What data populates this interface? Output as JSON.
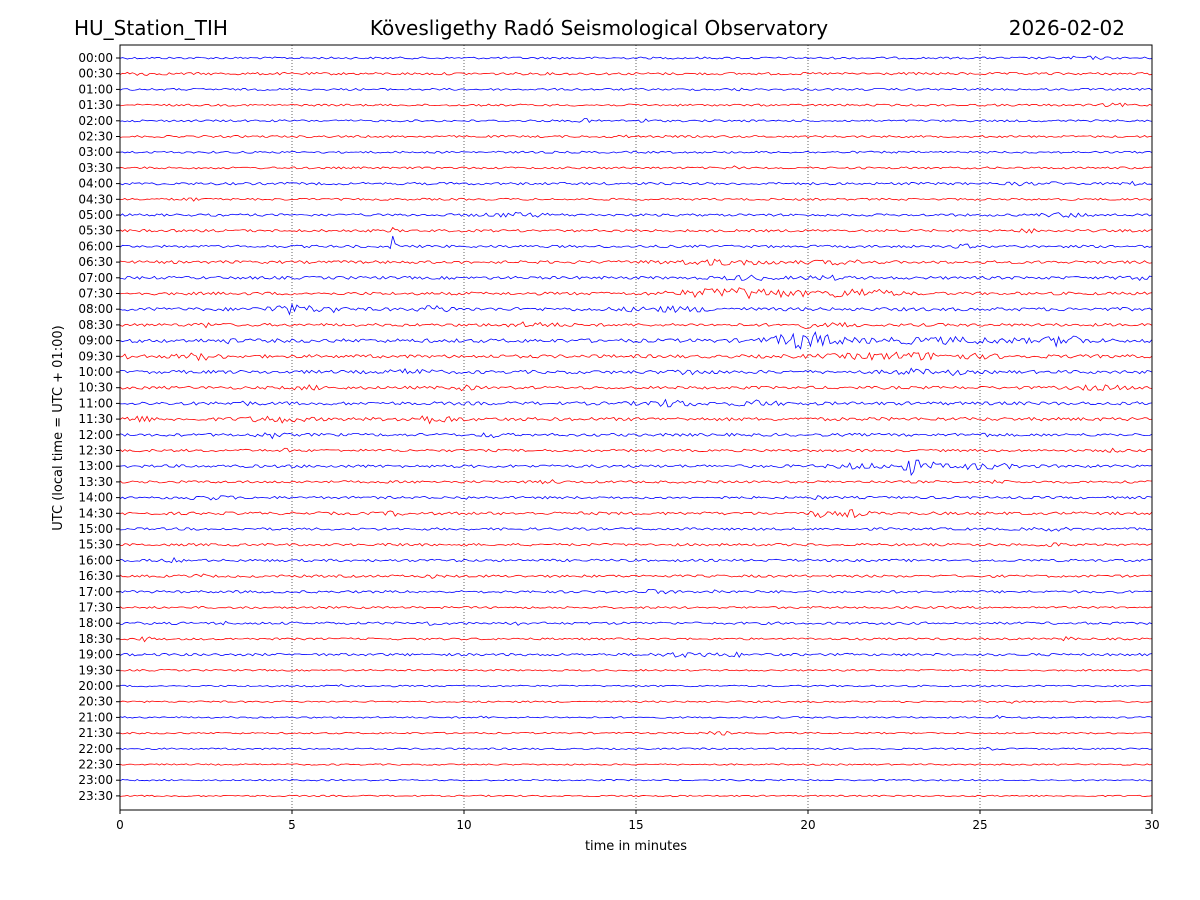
{
  "header": {
    "station": "HU_Station_TIH",
    "observatory": "Kövesligethy Radó Seismological Observatory",
    "date": "2026-02-02"
  },
  "chart_data": {
    "type": "line",
    "subtype": "helicorder",
    "xlabel": "time in minutes",
    "ylabel": "UTC (local time = UTC + 01:00)",
    "xlim": [
      0,
      30
    ],
    "x_ticks": [
      "0",
      "5",
      "10",
      "15",
      "20",
      "25",
      "30"
    ],
    "x_gridlines": [
      5,
      10,
      15,
      20,
      25
    ],
    "row_colors": [
      "#0000ff",
      "#ff0000"
    ],
    "rows": [
      {
        "label": "00:00",
        "noise": 0.25,
        "events": [
          {
            "t": 28.0,
            "amp": 0.25,
            "dur": 1.2
          }
        ]
      },
      {
        "label": "00:30",
        "noise": 0.3,
        "events": [
          {
            "t": 0.5,
            "amp": 0.35,
            "dur": 0.6
          }
        ]
      },
      {
        "label": "01:00",
        "noise": 0.25,
        "events": [
          {
            "t": 17.9,
            "amp": 0.3,
            "dur": 0.3
          }
        ]
      },
      {
        "label": "01:30",
        "noise": 0.25,
        "events": [
          {
            "t": 29.0,
            "amp": 0.25,
            "dur": 1.0
          }
        ]
      },
      {
        "label": "02:00",
        "noise": 0.25,
        "events": [
          {
            "t": 13.5,
            "amp": 0.35,
            "dur": 0.5
          },
          {
            "t": 15.2,
            "amp": 0.3,
            "dur": 0.5
          }
        ]
      },
      {
        "label": "02:30",
        "noise": 0.25,
        "events": [
          {
            "t": 14.5,
            "amp": 0.3,
            "dur": 0.5
          }
        ]
      },
      {
        "label": "03:00",
        "noise": 0.25,
        "events": []
      },
      {
        "label": "03:30",
        "noise": 0.25,
        "events": [
          {
            "t": 17.8,
            "amp": 0.3,
            "dur": 0.4
          }
        ]
      },
      {
        "label": "04:00",
        "noise": 0.3,
        "events": [
          {
            "t": 26.2,
            "amp": 0.35,
            "dur": 0.6
          },
          {
            "t": 27.2,
            "amp": 0.3,
            "dur": 0.3
          },
          {
            "t": 29.5,
            "amp": 0.3,
            "dur": 0.6
          }
        ]
      },
      {
        "label": "04:30",
        "noise": 0.25,
        "events": [
          {
            "t": 2.0,
            "amp": 0.3,
            "dur": 0.6
          }
        ]
      },
      {
        "label": "05:00",
        "noise": 0.3,
        "events": [
          {
            "t": 11.5,
            "amp": 0.35,
            "dur": 2.0
          },
          {
            "t": 27.5,
            "amp": 0.35,
            "dur": 1.5
          }
        ]
      },
      {
        "label": "05:30",
        "noise": 0.3,
        "events": [
          {
            "t": 7.9,
            "amp": 0.5,
            "dur": 0.2
          },
          {
            "t": 26.5,
            "amp": 0.3,
            "dur": 0.8
          }
        ]
      },
      {
        "label": "06:00",
        "noise": 0.3,
        "events": [
          {
            "t": 7.95,
            "amp": 2.6,
            "dur": 0.15
          },
          {
            "t": 24.5,
            "amp": 0.35,
            "dur": 0.5
          }
        ]
      },
      {
        "label": "06:30",
        "noise": 0.35,
        "events": [
          {
            "t": 17.5,
            "amp": 0.45,
            "dur": 3.5
          },
          {
            "t": 21.0,
            "amp": 0.35,
            "dur": 1.5
          }
        ]
      },
      {
        "label": "07:00",
        "noise": 0.35,
        "events": [
          {
            "t": 18.2,
            "amp": 0.4,
            "dur": 1.5
          },
          {
            "t": 20.5,
            "amp": 0.35,
            "dur": 1.2
          },
          {
            "t": 29.5,
            "amp": 0.45,
            "dur": 0.8
          }
        ]
      },
      {
        "label": "07:30",
        "noise": 0.35,
        "events": [
          {
            "t": 18.0,
            "amp": 1.1,
            "dur": 3.5
          },
          {
            "t": 21.5,
            "amp": 0.9,
            "dur": 2.0
          }
        ]
      },
      {
        "label": "08:00",
        "noise": 0.4,
        "events": [
          {
            "t": 5.0,
            "amp": 0.9,
            "dur": 1.5
          },
          {
            "t": 6.2,
            "amp": 0.75,
            "dur": 0.3
          },
          {
            "t": 9.2,
            "amp": 0.7,
            "dur": 0.8
          },
          {
            "t": 16.0,
            "amp": 0.4,
            "dur": 3.0
          }
        ]
      },
      {
        "label": "08:30",
        "noise": 0.35,
        "events": [
          {
            "t": 2.5,
            "amp": 0.45,
            "dur": 0.5
          },
          {
            "t": 12.0,
            "amp": 0.45,
            "dur": 1.5
          },
          {
            "t": 19.9,
            "amp": 0.55,
            "dur": 0.6
          },
          {
            "t": 21.0,
            "amp": 0.4,
            "dur": 0.8
          }
        ]
      },
      {
        "label": "09:00",
        "noise": 0.45,
        "events": [
          {
            "t": 19.9,
            "amp": 1.7,
            "dur": 1.8
          },
          {
            "t": 24.0,
            "amp": 0.5,
            "dur": 5.0
          },
          {
            "t": 27.5,
            "amp": 1.2,
            "dur": 1.0
          },
          {
            "t": 3.2,
            "amp": 0.35,
            "dur": 0.3
          }
        ]
      },
      {
        "label": "09:30",
        "noise": 0.4,
        "events": [
          {
            "t": 2.3,
            "amp": 0.6,
            "dur": 1.2
          },
          {
            "t": 23.0,
            "amp": 0.65,
            "dur": 4.5
          },
          {
            "t": 0.3,
            "amp": 0.5,
            "dur": 0.5
          }
        ]
      },
      {
        "label": "10:00",
        "noise": 0.4,
        "events": [
          {
            "t": 8.5,
            "amp": 0.45,
            "dur": 1.2
          },
          {
            "t": 16.5,
            "amp": 0.45,
            "dur": 1.0
          },
          {
            "t": 24.3,
            "amp": 0.7,
            "dur": 0.3
          },
          {
            "t": 23.0,
            "amp": 0.5,
            "dur": 1.2
          }
        ]
      },
      {
        "label": "10:30",
        "noise": 0.35,
        "events": [
          {
            "t": 10.0,
            "amp": 0.4,
            "dur": 0.6
          },
          {
            "t": 28.5,
            "amp": 0.4,
            "dur": 1.5
          },
          {
            "t": 5.5,
            "amp": 0.35,
            "dur": 1.0
          }
        ]
      },
      {
        "label": "11:00",
        "noise": 0.4,
        "events": [
          {
            "t": 16.0,
            "amp": 0.6,
            "dur": 1.5
          },
          {
            "t": 18.5,
            "amp": 0.5,
            "dur": 1.2
          },
          {
            "t": 3.5,
            "amp": 0.45,
            "dur": 0.5
          }
        ]
      },
      {
        "label": "11:30",
        "noise": 0.4,
        "events": [
          {
            "t": 0.5,
            "amp": 0.55,
            "dur": 0.8
          },
          {
            "t": 4.5,
            "amp": 0.6,
            "dur": 1.5
          },
          {
            "t": 9.0,
            "amp": 0.7,
            "dur": 1.5
          }
        ]
      },
      {
        "label": "12:00",
        "noise": 0.35,
        "events": [
          {
            "t": 4.3,
            "amp": 0.75,
            "dur": 0.6
          },
          {
            "t": 10.8,
            "amp": 0.7,
            "dur": 0.4
          },
          {
            "t": 25.1,
            "amp": 0.35,
            "dur": 0.3
          }
        ]
      },
      {
        "label": "12:30",
        "noise": 0.3,
        "events": [
          {
            "t": 4.8,
            "amp": 0.45,
            "dur": 0.2
          },
          {
            "t": 29.0,
            "amp": 0.3,
            "dur": 0.6
          }
        ]
      },
      {
        "label": "13:00",
        "noise": 0.35,
        "events": [
          {
            "t": 23.0,
            "amp": 1.9,
            "dur": 0.5
          },
          {
            "t": 23.5,
            "amp": 0.8,
            "dur": 0.5
          },
          {
            "t": 25.0,
            "amp": 0.55,
            "dur": 2.0
          },
          {
            "t": 21.5,
            "amp": 0.5,
            "dur": 1.5
          }
        ]
      },
      {
        "label": "13:30",
        "noise": 0.3,
        "events": [
          {
            "t": 12.5,
            "amp": 0.35,
            "dur": 0.5
          },
          {
            "t": 25.5,
            "amp": 0.35,
            "dur": 0.5
          }
        ]
      },
      {
        "label": "14:00",
        "noise": 0.3,
        "events": [
          {
            "t": 2.5,
            "amp": 0.35,
            "dur": 1.5
          },
          {
            "t": 10.0,
            "amp": 0.4,
            "dur": 0.2
          },
          {
            "t": 20.3,
            "amp": 0.35,
            "dur": 0.3
          }
        ]
      },
      {
        "label": "14:30",
        "noise": 0.35,
        "events": [
          {
            "t": 20.3,
            "amp": 0.7,
            "dur": 0.5
          },
          {
            "t": 21.3,
            "amp": 0.7,
            "dur": 0.8
          },
          {
            "t": 8.0,
            "amp": 0.4,
            "dur": 0.5
          }
        ]
      },
      {
        "label": "15:00",
        "noise": 0.3,
        "events": [
          {
            "t": 27.0,
            "amp": 0.3,
            "dur": 1.0
          }
        ]
      },
      {
        "label": "15:30",
        "noise": 0.3,
        "events": [
          {
            "t": 8.2,
            "amp": 0.35,
            "dur": 0.3
          },
          {
            "t": 27.0,
            "amp": 0.3,
            "dur": 0.8
          }
        ]
      },
      {
        "label": "16:00",
        "noise": 0.3,
        "events": [
          {
            "t": 7.7,
            "amp": 0.7,
            "dur": 0.15
          },
          {
            "t": 1.5,
            "amp": 0.35,
            "dur": 0.6
          }
        ]
      },
      {
        "label": "16:30",
        "noise": 0.3,
        "events": [
          {
            "t": 2.3,
            "amp": 0.35,
            "dur": 0.4
          },
          {
            "t": 9.0,
            "amp": 0.35,
            "dur": 0.4
          }
        ]
      },
      {
        "label": "17:00",
        "noise": 0.3,
        "events": [
          {
            "t": 15.5,
            "amp": 0.35,
            "dur": 1.0
          },
          {
            "t": 17.3,
            "amp": 0.35,
            "dur": 0.5
          }
        ]
      },
      {
        "label": "17:30",
        "noise": 0.25,
        "events": [
          {
            "t": 3.5,
            "amp": 0.35,
            "dur": 0.2
          }
        ]
      },
      {
        "label": "18:00",
        "noise": 0.3,
        "events": [
          {
            "t": 3.0,
            "amp": 0.6,
            "dur": 0.15
          },
          {
            "t": 9.0,
            "amp": 0.4,
            "dur": 0.4
          },
          {
            "t": 11.6,
            "amp": 0.7,
            "dur": 0.2
          }
        ]
      },
      {
        "label": "18:30",
        "noise": 0.25,
        "events": [
          {
            "t": 0.7,
            "amp": 0.45,
            "dur": 0.4
          },
          {
            "t": 27.5,
            "amp": 0.3,
            "dur": 0.5
          }
        ]
      },
      {
        "label": "19:00",
        "noise": 0.3,
        "events": [
          {
            "t": 16.5,
            "amp": 0.4,
            "dur": 2.0
          },
          {
            "t": 17.9,
            "amp": 0.5,
            "dur": 0.3
          }
        ]
      },
      {
        "label": "19:30",
        "noise": 0.2,
        "events": []
      },
      {
        "label": "20:00",
        "noise": 0.2,
        "events": [
          {
            "t": 6.5,
            "amp": 0.25,
            "dur": 0.4
          }
        ]
      },
      {
        "label": "20:30",
        "noise": 0.2,
        "events": [
          {
            "t": 26.0,
            "amp": 0.25,
            "dur": 0.4
          }
        ]
      },
      {
        "label": "21:00",
        "noise": 0.2,
        "events": [
          {
            "t": 25.5,
            "amp": 0.3,
            "dur": 0.3
          },
          {
            "t": 10.5,
            "amp": 0.25,
            "dur": 0.3
          }
        ]
      },
      {
        "label": "21:30",
        "noise": 0.2,
        "events": [
          {
            "t": 17.5,
            "amp": 0.3,
            "dur": 1.0
          }
        ]
      },
      {
        "label": "22:00",
        "noise": 0.2,
        "events": [
          {
            "t": 25.3,
            "amp": 0.25,
            "dur": 0.3
          }
        ]
      },
      {
        "label": "22:30",
        "noise": 0.18,
        "events": []
      },
      {
        "label": "23:00",
        "noise": 0.18,
        "events": []
      },
      {
        "label": "23:30",
        "noise": 0.18,
        "events": []
      }
    ]
  }
}
